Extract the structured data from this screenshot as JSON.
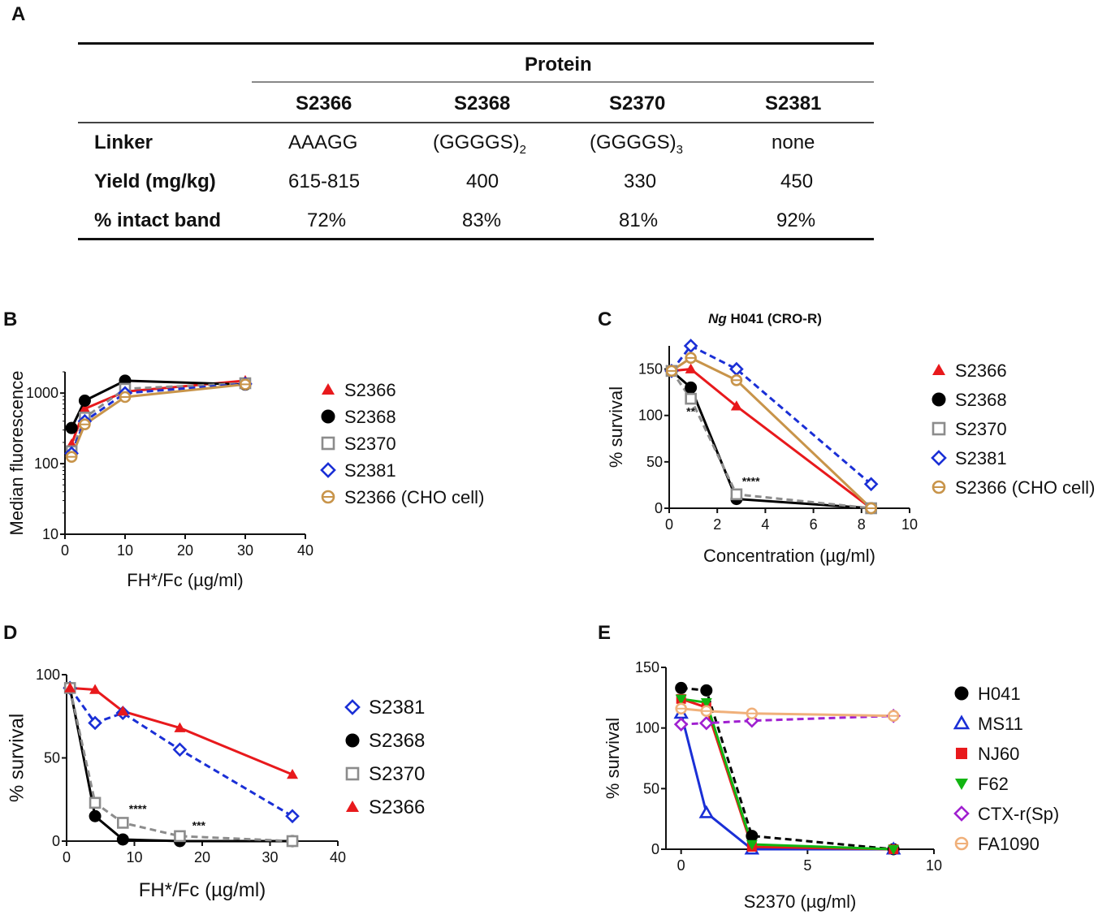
{
  "panel_labels": {
    "A": "A",
    "B": "B",
    "C": "C",
    "D": "D",
    "E": "E"
  },
  "table": {
    "spanner": "Protein",
    "columns": [
      "S2366",
      "S2368",
      "S2370",
      "S2381"
    ],
    "rows": [
      {
        "label": "Linker",
        "cells": [
          "AAAGG",
          "(GGGGS)",
          "(GGGGS)",
          "none"
        ],
        "subscripts": [
          "",
          "2",
          "3",
          ""
        ]
      },
      {
        "label": "Yield  (mg/kg)",
        "cells": [
          "615-815",
          "400",
          "330",
          "450"
        ]
      },
      {
        "label": "% intact band",
        "cells": [
          "72%",
          "83%",
          "81%",
          "92%"
        ]
      }
    ]
  },
  "chart_data": [
    {
      "id": "B",
      "type": "line",
      "title": "",
      "xlabel": "FH*/Fc (µg/ml)",
      "ylabel": "Median fluorescence",
      "xlim": [
        0,
        40
      ],
      "ylim": [
        10,
        2000
      ],
      "yscale": "log",
      "xticks": [
        0,
        10,
        20,
        30,
        40
      ],
      "yticks": [
        10,
        100,
        1000
      ],
      "ytick_labels": [
        "10",
        "100",
        "1000"
      ],
      "series": [
        {
          "name": "S2366",
          "x": [
            1.1,
            3.3,
            10,
            30
          ],
          "y": [
            190,
            600,
            1050,
            1500
          ],
          "color": "#e8191c",
          "marker": "triangle",
          "dash": false
        },
        {
          "name": "S2368",
          "x": [
            1.1,
            3.3,
            10,
            30
          ],
          "y": [
            320,
            780,
            1500,
            1320
          ],
          "color": "#000000",
          "marker": "circle",
          "dash": false
        },
        {
          "name": "S2370",
          "x": [
            1.1,
            3.3,
            10,
            30
          ],
          "y": [
            150,
            450,
            1150,
            1380
          ],
          "color": "#8c8c8c",
          "marker": "square",
          "dash": true
        },
        {
          "name": "S2381",
          "x": [
            1.1,
            3.3,
            10,
            30
          ],
          "y": [
            140,
            400,
            1000,
            1350
          ],
          "color": "#1a2fd6",
          "marker": "diamond",
          "dash": true
        },
        {
          "name": "S2366 (CHO cell)",
          "x": [
            1.1,
            3.3,
            10,
            30
          ],
          "y": [
            125,
            360,
            880,
            1330
          ],
          "color": "#c8944a",
          "marker": "hcircle",
          "dash": false
        }
      ],
      "annotations": []
    },
    {
      "id": "C",
      "type": "line",
      "title": "Ng H041 (CRO-R)",
      "title_italic": "Ng",
      "xlabel": "Concentration (µg/ml)",
      "ylabel": "% survival",
      "xlim": [
        0,
        10
      ],
      "ylim": [
        0,
        175
      ],
      "xticks": [
        0,
        2,
        4,
        6,
        8,
        10
      ],
      "yticks": [
        0,
        50,
        100,
        150
      ],
      "series": [
        {
          "name": "S2366",
          "x": [
            0.1,
            0.9,
            2.8,
            8.4
          ],
          "y": [
            148,
            150,
            110,
            0
          ],
          "color": "#e8191c",
          "marker": "triangle",
          "dash": false
        },
        {
          "name": "S2368",
          "x": [
            0.1,
            0.9,
            2.8,
            8.4
          ],
          "y": [
            148,
            130,
            10,
            0
          ],
          "color": "#000000",
          "marker": "circle",
          "dash": false
        },
        {
          "name": "S2370",
          "x": [
            0.1,
            0.9,
            2.8,
            8.4
          ],
          "y": [
            148,
            118,
            15,
            0
          ],
          "color": "#8c8c8c",
          "marker": "square",
          "dash": true
        },
        {
          "name": "S2381",
          "x": [
            0.1,
            0.9,
            2.8,
            8.4
          ],
          "y": [
            148,
            175,
            150,
            26
          ],
          "color": "#1a2fd6",
          "marker": "diamond",
          "dash": true
        },
        {
          "name": "S2366 (CHO cell)",
          "x": [
            0.1,
            0.9,
            2.8,
            8.4
          ],
          "y": [
            148,
            162,
            138,
            0
          ],
          "color": "#c8944a",
          "marker": "hcircle",
          "dash": false
        }
      ],
      "annotations": [
        {
          "text": "**",
          "x": 0.9,
          "y": 100
        },
        {
          "text": "****",
          "x": 3.4,
          "y": 25
        }
      ]
    },
    {
      "id": "D",
      "type": "line",
      "title": "",
      "xlabel": "FH*/Fc (µg/ml)",
      "ylabel": "% survival",
      "xlim": [
        0,
        40
      ],
      "ylim": [
        0,
        100
      ],
      "xticks": [
        0,
        10,
        20,
        30,
        40
      ],
      "yticks": [
        0,
        50,
        100
      ],
      "series": [
        {
          "name": "S2381",
          "x": [
            0.5,
            4.2,
            8.3,
            16.7,
            33.3
          ],
          "y": [
            92,
            71,
            77,
            55,
            15
          ],
          "color": "#1a2fd6",
          "marker": "diamond",
          "dash": true
        },
        {
          "name": "S2368",
          "x": [
            0.5,
            4.2,
            8.3,
            16.7,
            33.3
          ],
          "y": [
            92,
            15,
            1,
            0,
            0
          ],
          "color": "#000000",
          "marker": "circle",
          "dash": false
        },
        {
          "name": "S2370",
          "x": [
            0.5,
            4.2,
            8.3,
            16.7,
            33.3
          ],
          "y": [
            92,
            23,
            11,
            3,
            0
          ],
          "color": "#8c8c8c",
          "marker": "square",
          "dash": true
        },
        {
          "name": "S2366",
          "x": [
            0.5,
            4.2,
            8.3,
            16.7,
            33.3
          ],
          "y": [
            92,
            91,
            78,
            68,
            40
          ],
          "color": "#e8191c",
          "marker": "triangle",
          "dash": false
        }
      ],
      "annotations": [
        {
          "text": "****",
          "x": 10.5,
          "y": 17
        },
        {
          "text": "***",
          "x": 19.5,
          "y": 7
        }
      ]
    },
    {
      "id": "E",
      "type": "line",
      "title": "",
      "xlabel": "S2370 (µg/ml)",
      "ylabel": "% survival",
      "xlim": [
        -0.6,
        10
      ],
      "ylim": [
        0,
        150
      ],
      "xticks": [
        0,
        5,
        10
      ],
      "yticks": [
        0,
        50,
        100,
        150
      ],
      "series": [
        {
          "name": "H041",
          "x": [
            0,
            1,
            2.8,
            8.4
          ],
          "y": [
            133,
            131,
            11,
            0
          ],
          "color": "#000000",
          "marker": "circle",
          "dash": true
        },
        {
          "name": "MS11",
          "x": [
            0,
            1,
            2.8,
            8.4
          ],
          "y": [
            112,
            30,
            0,
            0
          ],
          "color": "#1a2fd6",
          "marker": "otriangle",
          "dash": false
        },
        {
          "name": "NJ60",
          "x": [
            0,
            1,
            2.8,
            8.4
          ],
          "y": [
            124,
            117,
            2,
            0
          ],
          "color": "#e8191c",
          "marker": "square_filled",
          "dash": false
        },
        {
          "name": "F62",
          "x": [
            0,
            1,
            2.8,
            8.4
          ],
          "y": [
            124,
            121,
            4,
            0
          ],
          "color": "#12b512",
          "marker": "dtriangle",
          "dash": false
        },
        {
          "name": "CTX-r(Sp)",
          "x": [
            0,
            1,
            2.8,
            8.4
          ],
          "y": [
            103,
            104,
            106,
            110
          ],
          "color": "#a020d0",
          "marker": "diamond",
          "dash": true
        },
        {
          "name": "FA1090",
          "x": [
            0,
            1,
            2.8,
            8.4
          ],
          "y": [
            116,
            114,
            112,
            110
          ],
          "color": "#f0b07a",
          "marker": "hcircle",
          "dash": false
        }
      ],
      "annotations": []
    }
  ]
}
